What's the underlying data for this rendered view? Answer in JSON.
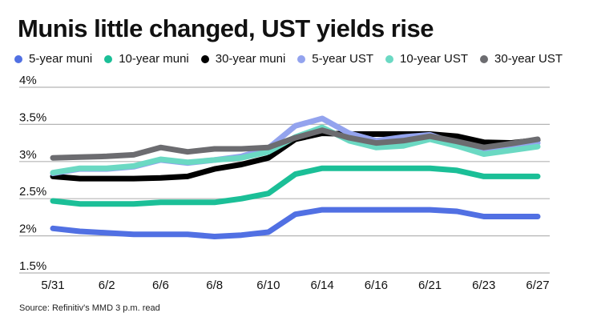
{
  "title": "Munis little changed, UST yields rise",
  "source": "Source: Refinitiv's MMD 3 p.m. read",
  "chart_data": {
    "type": "line",
    "title": "Munis little changed, UST yields rise",
    "xlabel": "",
    "ylabel": "",
    "ylim": [
      1.5,
      4.0
    ],
    "yticks": [
      1.5,
      2.0,
      2.5,
      3.0,
      3.5,
      4.0
    ],
    "ytick_labels": [
      "1.5%",
      "2%",
      "2.5%",
      "3%",
      "3.5%",
      "4%"
    ],
    "grid": true,
    "legend_position": "top",
    "x": [
      "5/31",
      "6/1",
      "6/2",
      "6/3",
      "6/6",
      "6/7",
      "6/8",
      "6/9",
      "6/10",
      "6/13",
      "6/14",
      "6/15",
      "6/16",
      "6/17",
      "6/21",
      "6/22",
      "6/23",
      "6/24",
      "6/27"
    ],
    "xtick_labels": [
      "5/31",
      "6/2",
      "6/6",
      "6/8",
      "6/10",
      "6/14",
      "6/16",
      "6/21",
      "6/23",
      "6/27"
    ],
    "series": [
      {
        "name": "5-year muni",
        "color": "#5170e3",
        "values": [
          2.1,
          2.06,
          2.04,
          2.02,
          2.02,
          2.02,
          1.99,
          2.01,
          2.05,
          2.29,
          2.35,
          2.35,
          2.35,
          2.35,
          2.35,
          2.33,
          2.26,
          2.26,
          2.26
        ]
      },
      {
        "name": "10-year muni",
        "color": "#1bbf97",
        "values": [
          2.47,
          2.43,
          2.43,
          2.43,
          2.45,
          2.45,
          2.45,
          2.5,
          2.57,
          2.83,
          2.91,
          2.91,
          2.91,
          2.91,
          2.91,
          2.88,
          2.8,
          2.8,
          2.8
        ]
      },
      {
        "name": "30-year muni",
        "color": "#000000",
        "values": [
          2.8,
          2.77,
          2.77,
          2.77,
          2.78,
          2.8,
          2.9,
          2.96,
          3.05,
          3.3,
          3.38,
          3.37,
          3.37,
          3.37,
          3.37,
          3.34,
          3.26,
          3.25,
          3.29
        ]
      },
      {
        "name": "5-year UST",
        "color": "#93a3ee",
        "values": [
          2.84,
          2.9,
          2.9,
          2.93,
          3.02,
          2.98,
          3.02,
          3.07,
          3.18,
          3.48,
          3.58,
          3.38,
          3.28,
          3.33,
          3.36,
          3.24,
          3.15,
          3.19,
          3.25
        ]
      },
      {
        "name": "10-year UST",
        "color": "#6bd9c3",
        "values": [
          2.85,
          2.91,
          2.91,
          2.94,
          3.03,
          2.99,
          3.02,
          3.05,
          3.13,
          3.33,
          3.46,
          3.28,
          3.19,
          3.21,
          3.3,
          3.21,
          3.1,
          3.15,
          3.2
        ]
      },
      {
        "name": "30-year UST",
        "color": "#6c6c70",
        "values": [
          3.05,
          3.06,
          3.07,
          3.09,
          3.19,
          3.13,
          3.17,
          3.17,
          3.19,
          3.32,
          3.42,
          3.32,
          3.25,
          3.28,
          3.34,
          3.27,
          3.19,
          3.24,
          3.3
        ]
      }
    ]
  }
}
